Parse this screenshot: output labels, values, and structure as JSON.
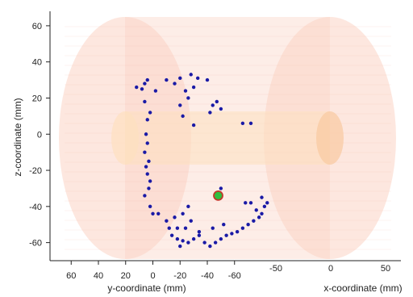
{
  "chart_data": {
    "type": "scatter",
    "title": "",
    "zlabel": "z-coordinate (mm)",
    "ylabel": "y-coordinate (mm)",
    "xlabel": "x-coordinate (mm)",
    "zlim": [
      -70,
      68
    ],
    "z_ticks": [
      60,
      40,
      20,
      0,
      -20,
      -40,
      -60
    ],
    "y_ticks": [
      "60",
      "40",
      "20",
      "0",
      "-20",
      "-40",
      "-60"
    ],
    "x_ticks": [
      "-50",
      "0",
      "50"
    ],
    "grid": false,
    "colors": {
      "points": "#1a1aa6",
      "cylinder_outer": "#fbd3c4",
      "cylinder_inner": "#fde0bf",
      "target_fill": "#2fbf3f",
      "target_ring": "#c0392b"
    },
    "target": {
      "y": -48,
      "z": -34
    },
    "points": [
      [
        4,
        30
      ],
      [
        6,
        28
      ],
      [
        8,
        25
      ],
      [
        12,
        26
      ],
      [
        -2,
        24
      ],
      [
        -10,
        30
      ],
      [
        -16,
        28
      ],
      [
        -20,
        31
      ],
      [
        -28,
        33
      ],
      [
        -33,
        31
      ],
      [
        -40,
        30
      ],
      [
        -30,
        26
      ],
      [
        -24,
        24
      ],
      [
        -26,
        20
      ],
      [
        -20,
        16
      ],
      [
        -22,
        10
      ],
      [
        -30,
        5
      ],
      [
        -50,
        14
      ],
      [
        -47,
        18
      ],
      [
        -44,
        16
      ],
      [
        -42,
        12
      ],
      [
        -66,
        6
      ],
      [
        -72,
        6
      ],
      [
        6,
        18
      ],
      [
        2,
        12
      ],
      [
        4,
        8
      ],
      [
        5,
        0
      ],
      [
        4,
        -5
      ],
      [
        6,
        -10
      ],
      [
        3,
        -15
      ],
      [
        5,
        -18
      ],
      [
        4,
        -22
      ],
      [
        2,
        -26
      ],
      [
        3,
        -30
      ],
      [
        6,
        -34
      ],
      [
        2,
        -40
      ],
      [
        0,
        -44
      ],
      [
        -4,
        -44
      ],
      [
        -10,
        -48
      ],
      [
        -12,
        -52
      ],
      [
        -14,
        -56
      ],
      [
        -18,
        -58
      ],
      [
        -22,
        -59
      ],
      [
        -26,
        -60
      ],
      [
        -30,
        -58
      ],
      [
        -34,
        -56
      ],
      [
        -38,
        -60
      ],
      [
        -42,
        -62
      ],
      [
        -46,
        -60
      ],
      [
        -50,
        -58
      ],
      [
        -54,
        -56
      ],
      [
        -58,
        -55
      ],
      [
        -62,
        -54
      ],
      [
        -66,
        -52
      ],
      [
        -70,
        -50
      ],
      [
        -74,
        -48
      ],
      [
        -78,
        -46
      ],
      [
        -80,
        -44
      ],
      [
        -82,
        -40
      ],
      [
        -84,
        -38
      ],
      [
        -80,
        -35
      ],
      [
        -76,
        -42
      ],
      [
        -72,
        -38
      ],
      [
        -68,
        -38
      ],
      [
        -22,
        -44
      ],
      [
        -26,
        -40
      ],
      [
        -28,
        -48
      ],
      [
        -24,
        -52
      ],
      [
        -18,
        -52
      ],
      [
        -16,
        -46
      ],
      [
        -20,
        -62
      ],
      [
        -34,
        -54
      ],
      [
        -44,
        -52
      ],
      [
        -52,
        -50
      ],
      [
        -50,
        -30
      ]
    ]
  }
}
